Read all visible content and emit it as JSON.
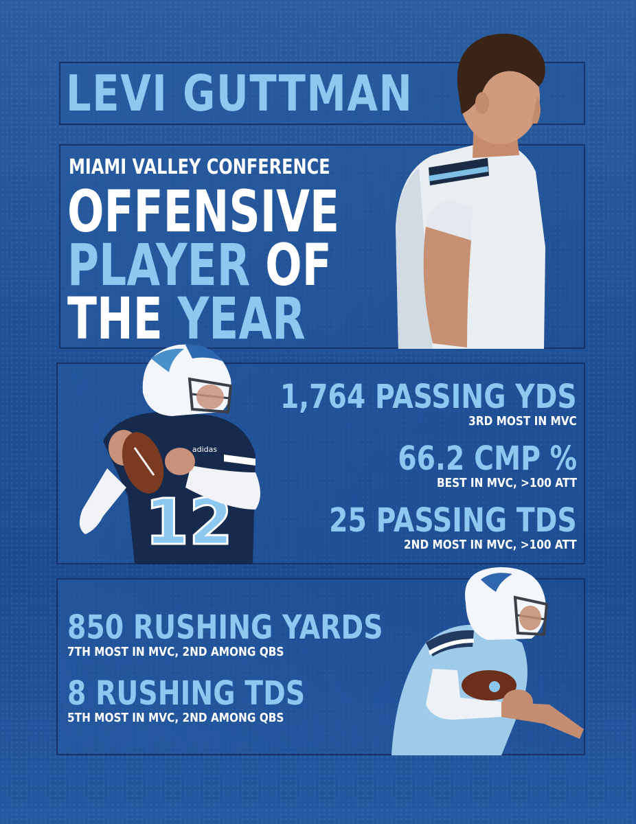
{
  "player": {
    "name": "LEVI GUTTMAN"
  },
  "award": {
    "conference": "MIAMI VALLEY CONFERENCE",
    "line1": "OFFENSIVE",
    "line2_a": "PLAYER",
    "line2_b": "OF",
    "line3_a": "THE",
    "line3_b": "YEAR"
  },
  "passing_stats": [
    {
      "value": "1,764 PASSING YDS",
      "note": "3RD MOST IN MVC"
    },
    {
      "value": "66.2 CMP %",
      "note": "BEST IN MVC, >100 ATT"
    },
    {
      "value": "25 PASSING TDS",
      "note": "2ND MOST IN MVC, >100 ATT"
    }
  ],
  "rushing_stats": [
    {
      "value": "850 RUSHING YARDS",
      "note": "7TH MOST IN MVC, 2ND AMONG QBS"
    },
    {
      "value": "8 RUSHING TDS",
      "note": "5TH MOST IN MVC, 2ND AMONG QBS"
    }
  ],
  "jersey_number": "12",
  "jersey_brand": "adidas",
  "colors": {
    "background": "#1f5096",
    "accent_light_blue": "#8cc8ef",
    "text_white": "#ffffff",
    "navy": "#14305e"
  }
}
